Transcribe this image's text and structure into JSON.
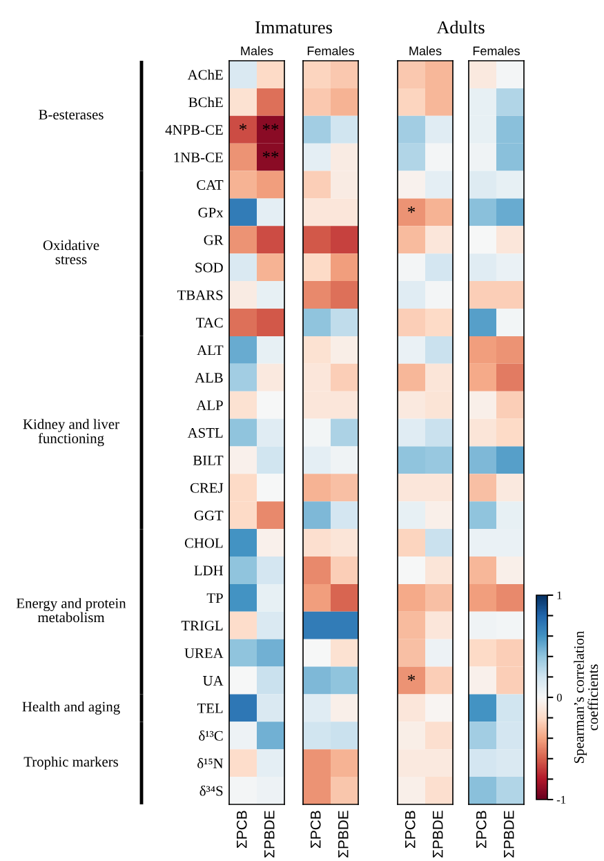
{
  "chart_data": {
    "type": "heatmap",
    "categories": [
      "ΣPCB",
      "ΣPBDE",
      "ΣPCB",
      "ΣPBDE",
      "ΣPCB",
      "ΣPBDE",
      "ΣPCB",
      "ΣPBDE"
    ],
    "y_categories": [
      "AChE",
      "BChE",
      "4NPB-CE",
      "1NB-CE",
      "CAT",
      "GPx",
      "GR",
      "SOD",
      "TBARS",
      "TAC",
      "ALT",
      "ALB",
      "ALP",
      "ASTL",
      "BILT",
      "CREJ",
      "GGT",
      "CHOL",
      "LDH",
      "TP",
      "TRIGL",
      "UREA",
      "UA",
      "TEL",
      "δ¹³C",
      "δ¹⁵N",
      "δ³⁴S"
    ],
    "cells": [
      [
        0.15,
        -0.2,
        -0.22,
        -0.27,
        -0.27,
        -0.33,
        -0.1,
        0.02
      ],
      [
        -0.15,
        -0.55,
        -0.27,
        -0.35,
        -0.22,
        -0.33,
        0.08,
        0.3
      ],
      [
        -0.65,
        -0.9,
        0.35,
        0.2,
        0.35,
        0.12,
        0.08,
        0.42
      ],
      [
        -0.45,
        -0.9,
        0.1,
        -0.08,
        0.3,
        0.02,
        0.04,
        0.42
      ],
      [
        -0.35,
        -0.42,
        -0.25,
        -0.08,
        -0.04,
        0.1,
        0.13,
        0.08
      ],
      [
        0.7,
        0.1,
        -0.12,
        -0.12,
        -0.45,
        -0.35,
        0.42,
        0.5
      ],
      [
        -0.45,
        -0.65,
        -0.62,
        -0.68,
        -0.32,
        -0.12,
        0.0,
        -0.12
      ],
      [
        0.15,
        -0.35,
        -0.2,
        -0.42,
        0.02,
        0.18,
        0.12,
        0.07
      ],
      [
        -0.08,
        0.08,
        -0.48,
        -0.55,
        0.12,
        0.02,
        -0.25,
        -0.25
      ],
      [
        -0.55,
        -0.62,
        0.4,
        0.25,
        -0.25,
        -0.2,
        0.55,
        0.03
      ],
      [
        0.5,
        0.08,
        -0.15,
        -0.07,
        0.07,
        0.22,
        -0.42,
        -0.45
      ],
      [
        0.35,
        -0.1,
        -0.12,
        -0.25,
        -0.33,
        -0.13,
        -0.38,
        -0.52
      ],
      [
        -0.15,
        0.0,
        -0.12,
        -0.12,
        -0.1,
        -0.14,
        -0.06,
        -0.25
      ],
      [
        0.4,
        0.12,
        0.03,
        0.32,
        0.12,
        0.22,
        -0.13,
        -0.2
      ],
      [
        -0.05,
        0.2,
        0.1,
        0.04,
        0.4,
        0.38,
        0.45,
        0.55
      ],
      [
        -0.2,
        0.0,
        -0.35,
        -0.3,
        -0.12,
        -0.12,
        -0.3,
        -0.1
      ],
      [
        -0.2,
        -0.48,
        0.45,
        0.18,
        0.08,
        -0.06,
        0.4,
        0.08
      ],
      [
        0.6,
        -0.05,
        -0.17,
        -0.13,
        -0.22,
        0.22,
        0.07,
        0.07
      ],
      [
        0.4,
        0.18,
        -0.48,
        -0.25,
        0.0,
        -0.13,
        -0.33,
        -0.06
      ],
      [
        0.6,
        0.08,
        -0.42,
        -0.58,
        -0.38,
        -0.3,
        -0.42,
        -0.48
      ],
      [
        -0.18,
        0.15,
        0.7,
        0.7,
        -0.32,
        -0.12,
        0.04,
        0.03
      ],
      [
        0.4,
        0.48,
        0.0,
        -0.15,
        -0.3,
        0.05,
        -0.2,
        -0.25
      ],
      [
        0.0,
        0.22,
        0.45,
        0.4,
        -0.45,
        -0.25,
        -0.05,
        -0.25
      ],
      [
        0.72,
        0.15,
        0.12,
        -0.06,
        -0.12,
        -0.02,
        0.6,
        0.2
      ],
      [
        0.05,
        0.48,
        0.2,
        0.22,
        -0.07,
        -0.17,
        0.35,
        0.18
      ],
      [
        -0.18,
        0.1,
        -0.45,
        -0.35,
        -0.1,
        -0.1,
        0.18,
        0.15
      ],
      [
        0.02,
        0.05,
        -0.45,
        -0.28,
        -0.06,
        -0.17,
        0.42,
        0.3
      ]
    ],
    "cell_labels": [
      [
        null,
        null,
        null,
        null,
        null,
        null,
        null,
        null
      ],
      [
        null,
        null,
        null,
        null,
        null,
        null,
        null,
        null
      ],
      [
        "*",
        "**",
        null,
        null,
        null,
        null,
        null,
        null
      ],
      [
        null,
        "**",
        null,
        null,
        null,
        null,
        null,
        null
      ],
      [
        null,
        null,
        null,
        null,
        null,
        null,
        null,
        null
      ],
      [
        null,
        null,
        null,
        null,
        "*",
        null,
        null,
        null
      ],
      [
        null,
        null,
        null,
        null,
        null,
        null,
        null,
        null
      ],
      [
        null,
        null,
        null,
        null,
        null,
        null,
        null,
        null
      ],
      [
        null,
        null,
        null,
        null,
        null,
        null,
        null,
        null
      ],
      [
        null,
        null,
        null,
        null,
        null,
        null,
        null,
        null
      ],
      [
        null,
        null,
        null,
        null,
        null,
        null,
        null,
        null
      ],
      [
        null,
        null,
        null,
        null,
        null,
        null,
        null,
        null
      ],
      [
        null,
        null,
        null,
        null,
        null,
        null,
        null,
        null
      ],
      [
        null,
        null,
        null,
        null,
        null,
        null,
        null,
        null
      ],
      [
        null,
        null,
        null,
        null,
        null,
        null,
        null,
        null
      ],
      [
        null,
        null,
        null,
        null,
        null,
        null,
        null,
        null
      ],
      [
        null,
        null,
        null,
        null,
        null,
        null,
        null,
        null
      ],
      [
        null,
        null,
        null,
        null,
        null,
        null,
        null,
        null
      ],
      [
        null,
        null,
        null,
        null,
        null,
        null,
        null,
        null
      ],
      [
        null,
        null,
        null,
        null,
        null,
        null,
        null,
        null
      ],
      [
        null,
        null,
        null,
        null,
        null,
        null,
        null,
        null
      ],
      [
        null,
        null,
        null,
        null,
        null,
        null,
        null,
        null
      ],
      [
        null,
        null,
        null,
        null,
        "*",
        null,
        null,
        null
      ],
      [
        null,
        null,
        null,
        null,
        null,
        null,
        null,
        null
      ],
      [
        null,
        null,
        null,
        null,
        null,
        null,
        null,
        null
      ],
      [
        null,
        null,
        null,
        null,
        null,
        null,
        null,
        null
      ],
      [
        null,
        null,
        null,
        null,
        null,
        null,
        null,
        null
      ]
    ],
    "annotations": [
      "Immatures",
      "Adults",
      "Males",
      "Females",
      "Males",
      "Females",
      "B-esterases",
      "Oxidative\nstress",
      "Kidney and liver\nfunctioning",
      "Energy and protein\nmetabolism",
      "Health and aging",
      "Trophic markers"
    ],
    "clim": [
      -1,
      1
    ],
    "clabel": "Spearman’s correlation\ncoefficients",
    "cticks": [
      {
        "value": -1,
        "label": "-1"
      },
      {
        "value": -0.8,
        "label": null
      },
      {
        "value": -0.6,
        "label": null
      },
      {
        "value": -0.4,
        "label": null
      },
      {
        "value": -0.2,
        "label": null
      },
      0,
      {
        "value": 0.2,
        "label": null
      },
      {
        "value": 0.4,
        "label": null
      },
      {
        "value": 0.6,
        "label": null
      },
      {
        "value": 0.8,
        "label": null
      },
      1
    ]
  }
}
